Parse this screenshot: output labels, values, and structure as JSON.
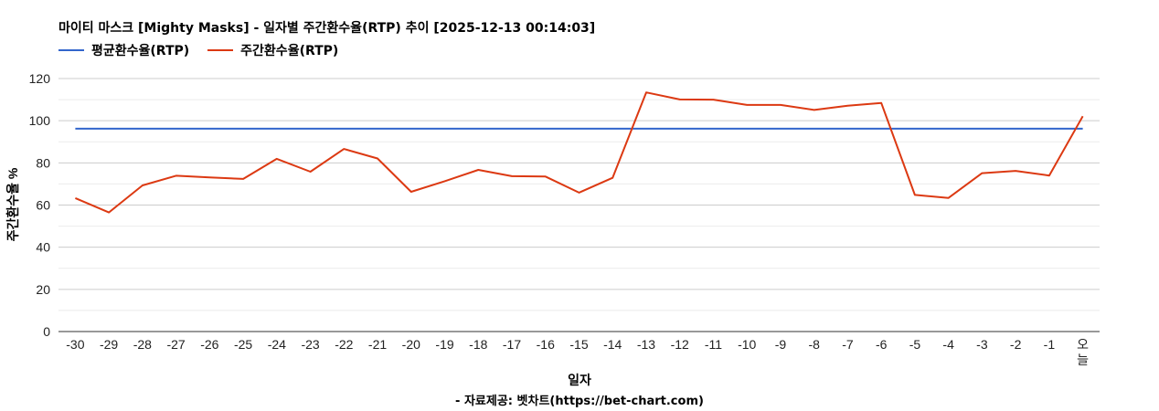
{
  "title": "마이티 마스크 [Mighty Masks] - 일자별 주간환수율(RTP) 추이 [2025-12-13 00:14:03]",
  "credit": "- 자료제공: 벳차트(https://bet-chart.com)",
  "chart_data": {
    "type": "line",
    "title": "마이티 마스크 [Mighty Masks] - 일자별 주간환수율(RTP) 추이 [2025-12-13 00:14:03]",
    "xlabel": "일자",
    "ylabel": "주간환수율 %",
    "ylim": [
      0,
      120
    ],
    "yticks": [
      0,
      20,
      40,
      60,
      80,
      100,
      120
    ],
    "grid": true,
    "legend_position": "top-left",
    "categories": [
      "-30",
      "-29",
      "-28",
      "-27",
      "-26",
      "-25",
      "-24",
      "-23",
      "-22",
      "-21",
      "-20",
      "-19",
      "-18",
      "-17",
      "-16",
      "-15",
      "-14",
      "-13",
      "-12",
      "-11",
      "-10",
      "-9",
      "-8",
      "-7",
      "-6",
      "-5",
      "-4",
      "-3",
      "-2",
      "-1",
      "오늘"
    ],
    "series": [
      {
        "name": "평균환수율(RTP)",
        "color": "#3366cc",
        "values": [
          96.2,
          96.2,
          96.2,
          96.2,
          96.2,
          96.2,
          96.2,
          96.2,
          96.2,
          96.2,
          96.2,
          96.2,
          96.2,
          96.2,
          96.2,
          96.2,
          96.2,
          96.2,
          96.2,
          96.2,
          96.2,
          96.2,
          96.2,
          96.2,
          96.2,
          96.2,
          96.2,
          96.2,
          96.2,
          96.2,
          96.2
        ]
      },
      {
        "name": "주간환수율(RTP)",
        "color": "#dc3912",
        "values": [
          63.3,
          56.5,
          69.3,
          73.9,
          73.1,
          72.4,
          81.9,
          75.8,
          86.6,
          82.1,
          66.3,
          71.3,
          76.7,
          73.7,
          73.5,
          65.9,
          72.9,
          113.4,
          110.1,
          110.0,
          107.5,
          107.5,
          105.1,
          107.1,
          108.4,
          64.8,
          63.4,
          75.1,
          76.2,
          74.0,
          102.1
        ]
      }
    ]
  }
}
